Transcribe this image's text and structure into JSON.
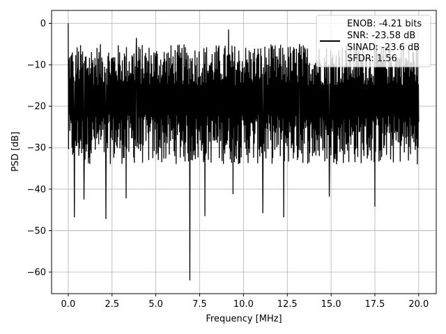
{
  "chart_data": {
    "type": "line",
    "title": "",
    "xlabel": "Frequency [MHz]",
    "ylabel": "PSD [dB]",
    "xlim": [
      -0.95,
      21.0
    ],
    "ylim": [
      -65.2,
      3.1
    ],
    "x_ticks": [
      0.0,
      2.5,
      5.0,
      7.5,
      10.0,
      12.5,
      15.0,
      17.5,
      20.0
    ],
    "x_tick_labels": [
      "0.0",
      "2.5",
      "5.0",
      "7.5",
      "10.0",
      "12.5",
      "15.0",
      "17.5",
      "20.0"
    ],
    "y_ticks": [
      0,
      -10,
      -20,
      -30,
      -40,
      -50,
      -60
    ],
    "y_tick_labels": [
      "0",
      "−10",
      "−20",
      "−30",
      "−40",
      "−50",
      "−60"
    ],
    "grid": true,
    "legend_position": "top-right",
    "legend_entries": [
      "ENOB: -4.21 bits",
      "SNR: -23.58 dB",
      "SINAD: -23.6 dB",
      "SFDR: 1.56"
    ],
    "series": [
      {
        "color": "#000000",
        "x_range": [
          0,
          20
        ],
        "peaks": [
          {
            "x": 0.0,
            "y": 0.0
          },
          {
            "x": 6.95,
            "y": -62.0
          },
          {
            "x": 0.35,
            "y": -46.8
          },
          {
            "x": 0.9,
            "y": -42.5
          },
          {
            "x": 2.15,
            "y": -47.2
          },
          {
            "x": 3.3,
            "y": -42.2
          },
          {
            "x": 7.8,
            "y": -46.5
          },
          {
            "x": 9.4,
            "y": -41.2
          },
          {
            "x": 11.1,
            "y": -45.8
          },
          {
            "x": 12.3,
            "y": -46.8
          },
          {
            "x": 14.9,
            "y": -41.8
          },
          {
            "x": 17.5,
            "y": -44.2
          },
          {
            "x": 9.15,
            "y": -1.5
          },
          {
            "x": 3.9,
            "y": -3.5
          },
          {
            "x": 13.2,
            "y": -5.0
          }
        ],
        "band_upper_range": [
          -15,
          -5
        ],
        "band_lower_range": [
          -34,
          -22
        ]
      }
    ]
  }
}
